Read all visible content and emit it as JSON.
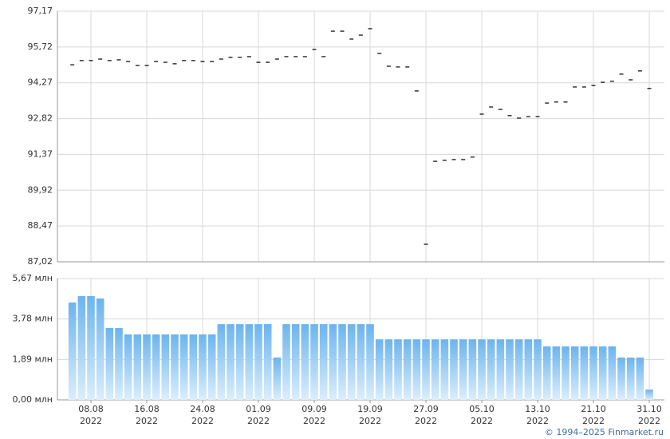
{
  "chart_data": [
    {
      "type": "scatter",
      "marker": "dash",
      "color": "#000000",
      "values": [
        95.0,
        95.17,
        95.17,
        95.23,
        95.17,
        95.2,
        95.13,
        94.97,
        94.97,
        95.13,
        95.1,
        95.04,
        95.17,
        95.17,
        95.13,
        95.13,
        95.23,
        95.3,
        95.3,
        95.33,
        95.1,
        95.1,
        95.23,
        95.33,
        95.33,
        95.33,
        95.62,
        95.33,
        96.36,
        96.36,
        96.04,
        96.2,
        96.46,
        95.46,
        94.94,
        94.91,
        94.91,
        93.94,
        87.73,
        91.09,
        91.13,
        91.16,
        91.16,
        91.26,
        93.0,
        93.29,
        93.19,
        92.94,
        92.84,
        92.9,
        92.9,
        93.45,
        93.49,
        93.49,
        94.1,
        94.1,
        94.16,
        94.29,
        94.33,
        94.62,
        94.39,
        94.75,
        94.04
      ],
      "ylim": [
        87.02,
        97.17
      ],
      "yticks": [
        {
          "value": 87.02,
          "label": "87,02"
        },
        {
          "value": 88.47,
          "label": "88,47"
        },
        {
          "value": 89.92,
          "label": "89,92"
        },
        {
          "value": 91.37,
          "label": "91,37"
        },
        {
          "value": 92.82,
          "label": "92,82"
        },
        {
          "value": 94.27,
          "label": "94,27"
        },
        {
          "value": 95.72,
          "label": "95,72"
        },
        {
          "value": 97.17,
          "label": "97,17"
        }
      ],
      "grid": true
    },
    {
      "type": "bar",
      "color": "#6cb4ee",
      "categories": [
        null,
        null,
        "08.08\n2022",
        null,
        null,
        null,
        null,
        null,
        "16.08\n2022",
        null,
        null,
        null,
        null,
        null,
        "24.08\n2022",
        null,
        null,
        null,
        null,
        null,
        "01.09\n2022",
        null,
        null,
        null,
        null,
        null,
        "09.09\n2022",
        null,
        null,
        null,
        null,
        null,
        "19.09\n2022",
        null,
        null,
        null,
        null,
        null,
        "27.09\n2022",
        null,
        null,
        null,
        null,
        null,
        "05.10\n2022",
        null,
        null,
        null,
        null,
        null,
        "13.10\n2022",
        null,
        null,
        null,
        null,
        null,
        "21.10\n2022",
        null,
        null,
        null,
        null,
        null,
        "31.10\n2022"
      ],
      "values": [
        4.55,
        4.85,
        4.85,
        4.74,
        3.36,
        3.36,
        3.06,
        3.06,
        3.06,
        3.06,
        3.06,
        3.06,
        3.06,
        3.06,
        3.06,
        3.06,
        3.54,
        3.54,
        3.54,
        3.54,
        3.54,
        3.54,
        1.98,
        3.54,
        3.54,
        3.54,
        3.54,
        3.54,
        3.54,
        3.54,
        3.54,
        3.54,
        3.54,
        2.83,
        2.83,
        2.83,
        2.83,
        2.83,
        2.83,
        2.83,
        2.83,
        2.83,
        2.83,
        2.83,
        2.83,
        2.83,
        2.83,
        2.83,
        2.83,
        2.83,
        2.83,
        2.5,
        2.5,
        2.5,
        2.5,
        2.5,
        2.5,
        2.5,
        2.5,
        1.98,
        1.98,
        1.98,
        0.48
      ],
      "ylim": [
        0,
        5.67
      ],
      "yticks": [
        {
          "value": 0,
          "label": "0,00 млн"
        },
        {
          "value": 1.89,
          "label": "1,89 млн"
        },
        {
          "value": 3.78,
          "label": "3,78 млн"
        },
        {
          "value": 5.67,
          "label": "5,67 млн"
        }
      ],
      "grid": true
    }
  ],
  "credit": "© 1994–2025 Finmarket.ru"
}
